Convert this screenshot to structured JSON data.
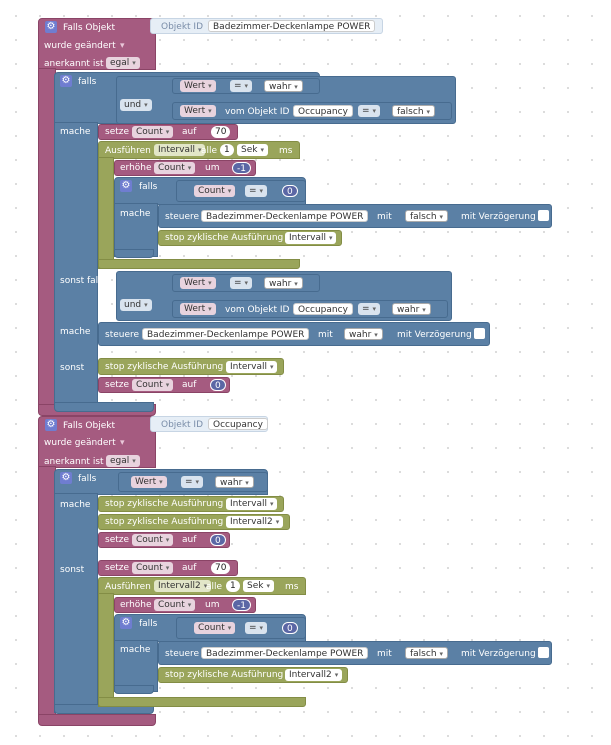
{
  "event1": {
    "title": "Falls Objekt",
    "objekt_id_label": "Objekt ID",
    "objekt_id_value": "Badezimmer-Deckenlampe POWER",
    "changed": "wurde geändert",
    "acknowledged_label": "anerkannt ist",
    "acknowledged_value": "egal",
    "if1": {
      "falls": "falls",
      "und": "und",
      "wert": "Wert",
      "eq": "=",
      "wahr": "wahr",
      "vom_objekt_id": "vom Objekt ID",
      "occupancy": "Occupancy",
      "falsch": "falsch"
    },
    "mache": "mache",
    "set_count": {
      "setze": "setze",
      "var": "Count",
      "auf": "auf",
      "value": "70"
    },
    "run": {
      "label": "Ausführen",
      "var": "Intervall",
      "alle": "alle",
      "n": "1",
      "unit": "Sek",
      "ms": "ms"
    },
    "inc": {
      "label": "erhöhe",
      "var": "Count",
      "um": "um",
      "value": "-1"
    },
    "inner_if": {
      "falls": "falls",
      "var": "Count",
      "eq": "=",
      "value": "0",
      "mache": "mache"
    },
    "steuere1": {
      "label": "steuere",
      "device": "Badezimmer-Deckenlampe POWER",
      "mit": "mit",
      "value": "falsch",
      "delay": "mit Verzögerung"
    },
    "stop1": {
      "label": "stop zyklische Ausführung",
      "var": "Intervall"
    },
    "sonst_falls": "sonst falls",
    "if2": {
      "und": "und",
      "wert": "Wert",
      "eq": "=",
      "wahr": "wahr",
      "vom_objekt_id": "vom Objekt ID",
      "occupancy": "Occupancy",
      "wahr2": "wahr"
    },
    "mache2": "mache",
    "steuere2": {
      "label": "steuere",
      "device": "Badezimmer-Deckenlampe POWER",
      "mit": "mit",
      "value": "wahr",
      "delay": "mit Verzögerung"
    },
    "sonst": "sonst",
    "stop2": {
      "label": "stop zyklische Ausführung",
      "var": "Intervall"
    },
    "set0": {
      "setze": "setze",
      "var": "Count",
      "auf": "auf",
      "value": "0"
    }
  },
  "event2": {
    "title": "Falls Objekt",
    "objekt_id_label": "Objekt ID",
    "objekt_id_value": "Occupancy",
    "changed": "wurde geändert",
    "acknowledged_label": "anerkannt ist",
    "acknowledged_value": "egal",
    "if": {
      "falls": "falls",
      "wert": "Wert",
      "eq": "=",
      "wahr": "wahr"
    },
    "mache": "mache",
    "stop_a": {
      "label": "stop zyklische Ausführung",
      "var": "Intervall"
    },
    "stop_b": {
      "label": "stop zyklische Ausführung",
      "var": "Intervall2"
    },
    "set0": {
      "setze": "setze",
      "var": "Count",
      "auf": "auf",
      "value": "0"
    },
    "sonst": "sonst",
    "set70": {
      "setze": "setze",
      "var": "Count",
      "auf": "auf",
      "value": "70"
    },
    "run": {
      "label": "Ausführen",
      "var": "Intervall2",
      "alle": "alle",
      "n": "1",
      "unit": "Sek",
      "ms": "ms"
    },
    "inc": {
      "label": "erhöhe",
      "var": "Count",
      "um": "um",
      "value": "-1"
    },
    "inner_if": {
      "falls": "falls",
      "var": "Count",
      "eq": "=",
      "value": "0",
      "mache": "mache"
    },
    "steuere": {
      "label": "steuere",
      "device": "Badezimmer-Deckenlampe POWER",
      "mit": "mit",
      "value": "falsch",
      "delay": "mit Verzögerung"
    },
    "stop_c": {
      "label": "stop zyklische Ausführung",
      "var": "Intervall2"
    }
  },
  "icons": {
    "gear": "gear-icon",
    "dropdown": "dropdown-arrow-icon"
  },
  "colors": {
    "event": "#a55b80",
    "logic": "#5b80a5",
    "system": "#9aa55b",
    "math": "#5b67a5"
  }
}
